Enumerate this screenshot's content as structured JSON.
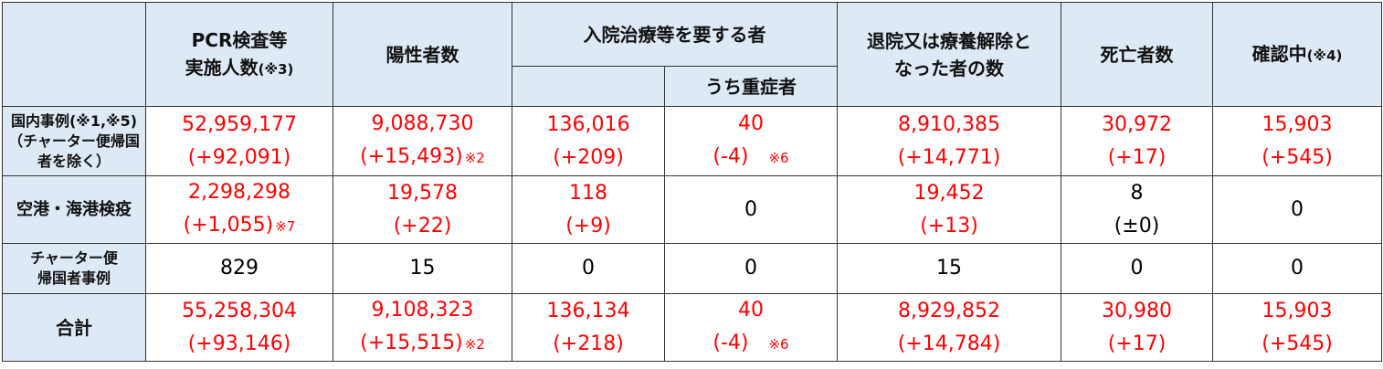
{
  "header": {
    "pcr": {
      "line1": "PCR検査等",
      "line2": "実施人数",
      "note": "(※3)"
    },
    "positive": "陽性者数",
    "hospital": "入院治療等を要する者",
    "severe": "うち重症者",
    "discharged": {
      "line1": "退院又は療養解除と",
      "line2": "なった者の数"
    },
    "deaths": "死亡者数",
    "confirming": {
      "label": "確認中",
      "note": "(※4)"
    }
  },
  "rows": [
    {
      "label": [
        "国内事例(※1,※5)",
        "（チャーター便帰国",
        "者を除く）"
      ],
      "cells": [
        {
          "v": "52,959,177",
          "d": "(+92,091)",
          "red": true
        },
        {
          "v": "9,088,730",
          "d": "(+15,493)",
          "note": "※2",
          "red": true
        },
        {
          "v": "136,016",
          "d": "(+209)",
          "red": true
        },
        {
          "v": "40",
          "d": "(-4)",
          "note": "※6",
          "red": true
        },
        {
          "v": "8,910,385",
          "d": "(+14,771)",
          "red": true
        },
        {
          "v": "30,972",
          "d": "(+17)",
          "red": true
        },
        {
          "v": "15,903",
          "d": "(+545)",
          "red": true
        }
      ]
    },
    {
      "label": [
        "空港・海港検疫"
      ],
      "cells": [
        {
          "v": "2,298,298",
          "d": "(+1,055)",
          "note": "※7",
          "red": true
        },
        {
          "v": "19,578",
          "d": "(+22)",
          "red": true
        },
        {
          "v": "118",
          "d": "(+9)",
          "red": true
        },
        {
          "v": "0",
          "red": false
        },
        {
          "v": "19,452",
          "d": "(+13)",
          "red": true
        },
        {
          "v": "8",
          "d": "(±0)",
          "red": false
        },
        {
          "v": "0",
          "red": false
        }
      ]
    },
    {
      "label": [
        "チャーター便",
        "帰国者事例"
      ],
      "cells": [
        {
          "v": "829"
        },
        {
          "v": "15"
        },
        {
          "v": "0"
        },
        {
          "v": "0"
        },
        {
          "v": "15"
        },
        {
          "v": "0"
        },
        {
          "v": "0"
        }
      ]
    },
    {
      "label": [
        "合計"
      ],
      "big": true,
      "cells": [
        {
          "v": "55,258,304",
          "d": "(+93,146)",
          "red": true
        },
        {
          "v": "9,108,323",
          "d": "(+15,515)",
          "note": "※2",
          "red": true
        },
        {
          "v": "136,134",
          "d": "(+218)",
          "red": true
        },
        {
          "v": "40",
          "d": "(-4)",
          "note": "※6",
          "red": true
        },
        {
          "v": "8,929,852",
          "d": "(+14,784)",
          "red": true
        },
        {
          "v": "30,980",
          "d": "(+17)",
          "red": true
        },
        {
          "v": "15,903",
          "d": "(+545)",
          "red": true
        }
      ]
    }
  ],
  "colors": {
    "header_bg": "#ddeaf6",
    "value_red": "#ff0000"
  }
}
